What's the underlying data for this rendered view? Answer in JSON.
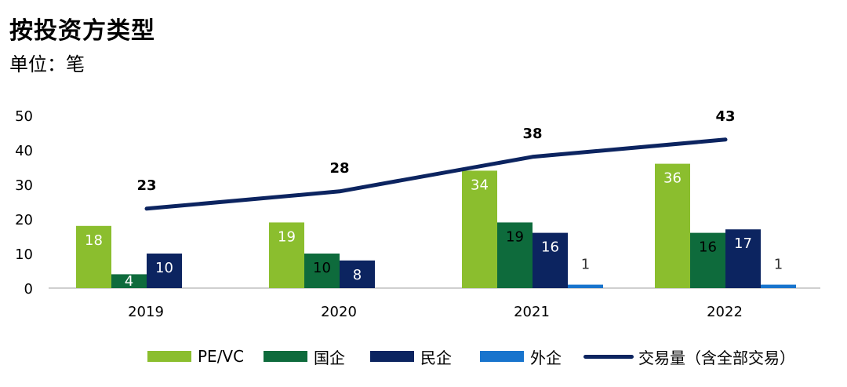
{
  "title": "按投资方类型",
  "subtitle": "单位：笔",
  "colors": {
    "pevc": "#8BBE2E",
    "soe": "#0E6B3C",
    "private": "#0C2460",
    "foreign": "#1874CD",
    "line": "#0C2460"
  },
  "chart_data": {
    "type": "bar",
    "categories": [
      "2019",
      "2020",
      "2021",
      "2022"
    ],
    "ylim": [
      0,
      50
    ],
    "yticks": [
      0,
      10,
      20,
      30,
      40,
      50
    ],
    "grid": false,
    "legend_position": "bottom",
    "series": [
      {
        "name": "PE/VC",
        "type": "bar",
        "values": [
          18,
          19,
          34,
          36
        ]
      },
      {
        "name": "国企",
        "type": "bar",
        "values": [
          4,
          10,
          19,
          16
        ]
      },
      {
        "name": "民企",
        "type": "bar",
        "values": [
          10,
          8,
          16,
          17
        ]
      },
      {
        "name": "外企",
        "type": "bar",
        "values": [
          0,
          0,
          1,
          1
        ]
      },
      {
        "name": "交易量（含全部交易）",
        "type": "line",
        "values": [
          23,
          28,
          38,
          43
        ]
      }
    ]
  }
}
